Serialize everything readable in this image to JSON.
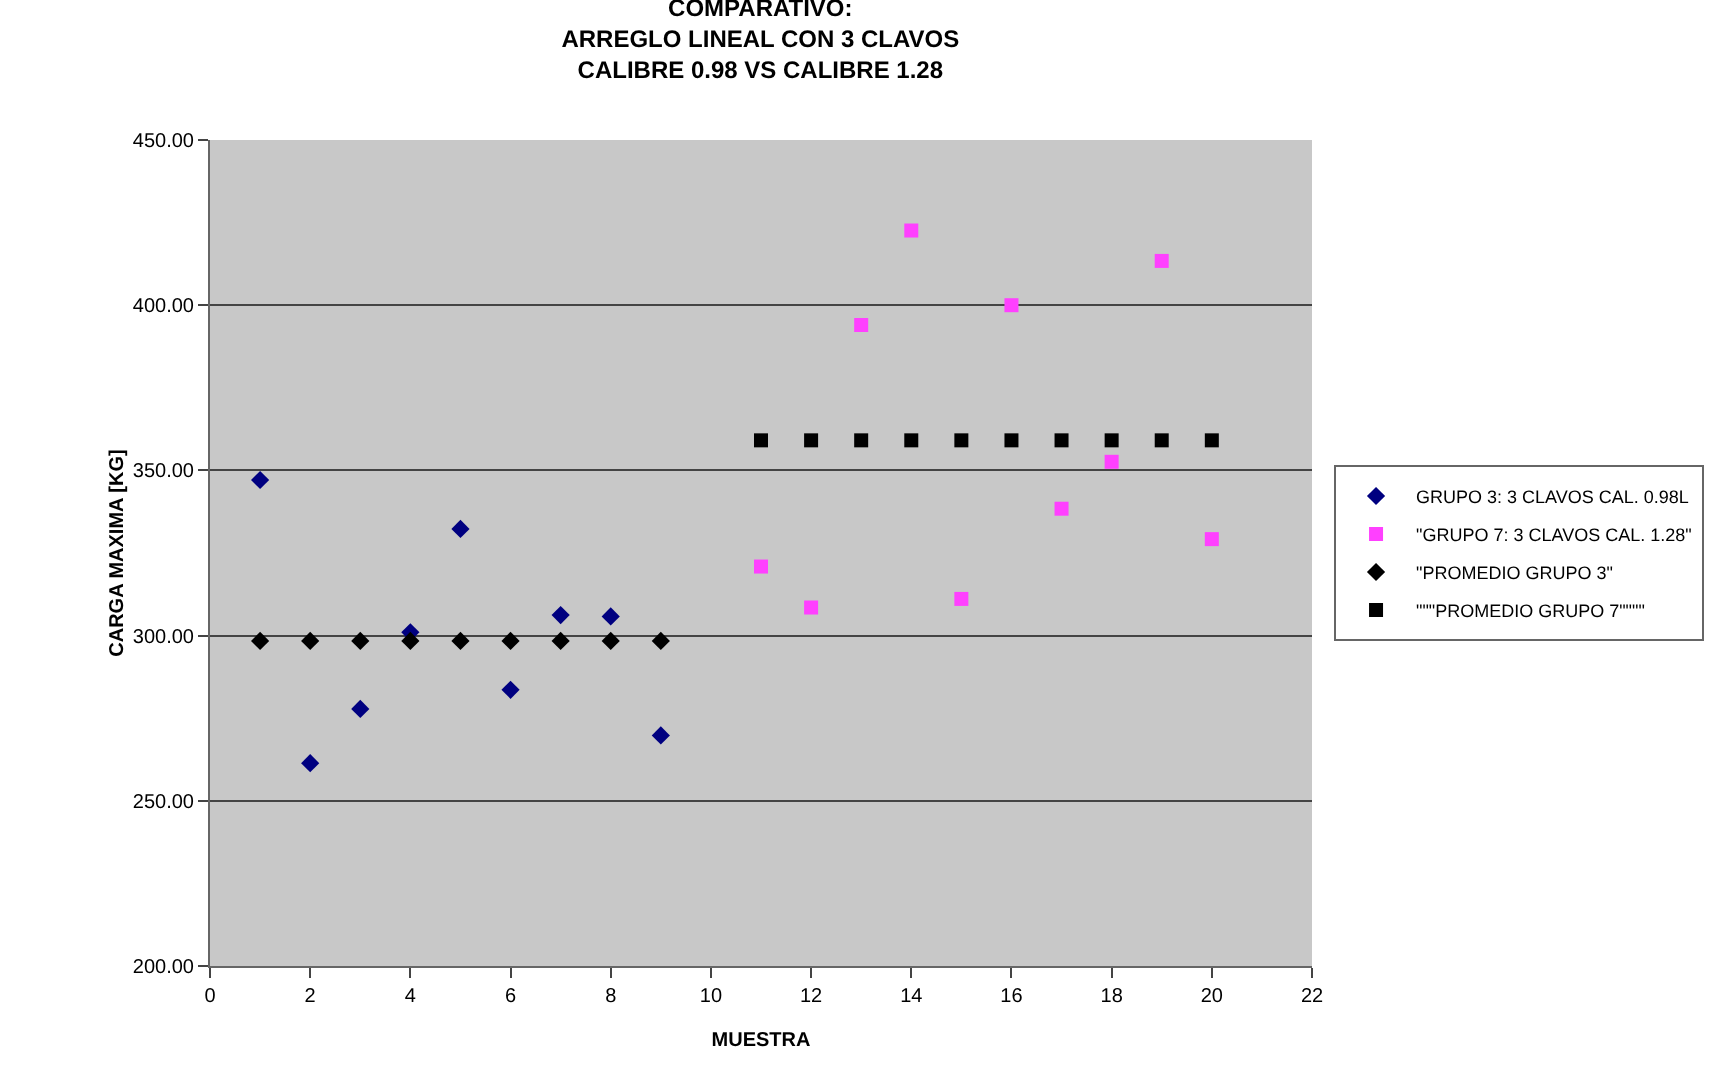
{
  "chart_data": {
    "type": "scatter",
    "title": "COMPARATIVO:\nARREGLO LINEAL CON 3 CLAVOS\nCALIBRE 0.98 VS CALIBRE 1.28",
    "xlabel": "MUESTRA",
    "ylabel": "CARGA MAXIMA [KG]",
    "xlim": [
      0,
      22
    ],
    "xticks": [
      0,
      2,
      4,
      6,
      8,
      10,
      12,
      14,
      16,
      18,
      20,
      22
    ],
    "ylim": [
      200,
      450
    ],
    "yticks": [
      {
        "value": 200,
        "label": "200.00"
      },
      {
        "value": 250,
        "label": "250.00"
      },
      {
        "value": 300,
        "label": "300.00"
      },
      {
        "value": 350,
        "label": "350.00"
      },
      {
        "value": 400,
        "label": "400.00"
      },
      {
        "value": 450,
        "label": "450.00"
      }
    ],
    "grid": "y",
    "legend": "right",
    "series": [
      {
        "name": "GRUPO 3: 3 CLAVOS CAL. 0.98L",
        "color": "#000080",
        "marker": "diamond",
        "x": [
          1,
          2,
          3,
          4,
          5,
          6,
          7,
          8,
          9
        ],
        "values": [
          347.1,
          261.4,
          277.8,
          301,
          332.3,
          283.6,
          306.2,
          305.8,
          269.8
        ]
      },
      {
        "name": "\"GRUPO 7: 3 CLAVOS CAL. 1.28\"",
        "color": "#ff40ff",
        "marker": "square",
        "x": [
          11,
          12,
          13,
          14,
          15,
          16,
          17,
          18,
          19,
          20
        ],
        "values": [
          320.9,
          308.5,
          394,
          422.6,
          311.1,
          400,
          338.4,
          352.6,
          413.4,
          329.2
        ]
      },
      {
        "name": "\"PROMEDIO GRUPO 3\"",
        "color": "#000000",
        "marker": "diamond",
        "x": [
          1,
          2,
          3,
          4,
          5,
          6,
          7,
          8,
          9
        ],
        "values": [
          298.4,
          298.4,
          298.4,
          298.4,
          298.4,
          298.4,
          298.4,
          298.4,
          298.4
        ]
      },
      {
        "name": "\"\"\"PROMEDIO GRUPO 7\"\"\"\"",
        "color": "#000000",
        "marker": "square",
        "x": [
          11,
          12,
          13,
          14,
          15,
          16,
          17,
          18,
          19,
          20
        ],
        "values": [
          359.1,
          359.1,
          359.1,
          359.1,
          359.1,
          359.1,
          359.1,
          359.1,
          359.1,
          359.1
        ]
      }
    ]
  }
}
